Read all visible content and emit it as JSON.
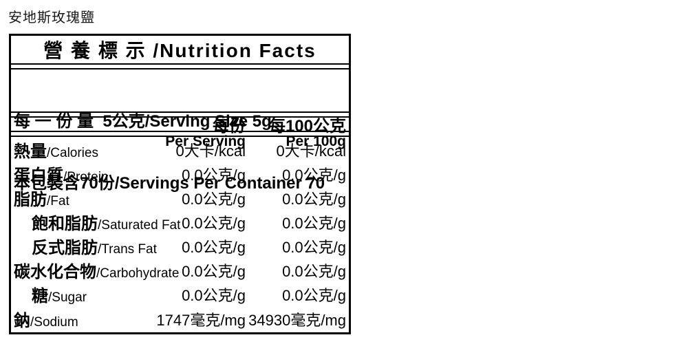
{
  "product_title": "安地斯玫瑰鹽",
  "label": {
    "title": "營 養 標 示 /Nutrition Facts",
    "serving_size": "每 一 份 量  5公克/Serving Size 5g",
    "servings_per_container": "本包裝含70份/Servings Per Container 70",
    "columns": [
      {
        "zh": "每份",
        "en": "Per Serving"
      },
      {
        "zh": "每100公克",
        "en": "Per 100g"
      }
    ],
    "rows": [
      {
        "zh": "熱量",
        "en": "/Calories",
        "per_serving": "0大卡/kcal",
        "per_100g": "0大卡/kcal"
      },
      {
        "zh": "蛋白質",
        "en": "/Protein",
        "per_serving": "0.0公克/g",
        "per_100g": "0.0公克/g"
      },
      {
        "zh": "脂肪",
        "en": "/Fat",
        "per_serving": "0.0公克/g",
        "per_100g": "0.0公克/g"
      },
      {
        "zh": "飽和脂肪",
        "en": "/Saturated Fat",
        "per_serving": "0.0公克/g",
        "per_100g": "0.0公克/g"
      },
      {
        "zh": "反式脂肪",
        "en": "/Trans Fat",
        "per_serving": "0.0公克/g",
        "per_100g": "0.0公克/g"
      },
      {
        "zh": "碳水化合物",
        "en": "/Carbohydrate",
        "per_serving": "0.0公克/g",
        "per_100g": "0.0公克/g"
      },
      {
        "zh": "糖",
        "en": "/Sugar",
        "per_serving": "0.0公克/g",
        "per_100g": "0.0公克/g"
      },
      {
        "zh": "鈉",
        "en": "/Sodium",
        "per_serving": "1747毫克/mg",
        "per_100g": "34930毫克/mg"
      }
    ]
  },
  "colors": {
    "border": "#000000",
    "text": "#000000",
    "background": "#ffffff"
  }
}
